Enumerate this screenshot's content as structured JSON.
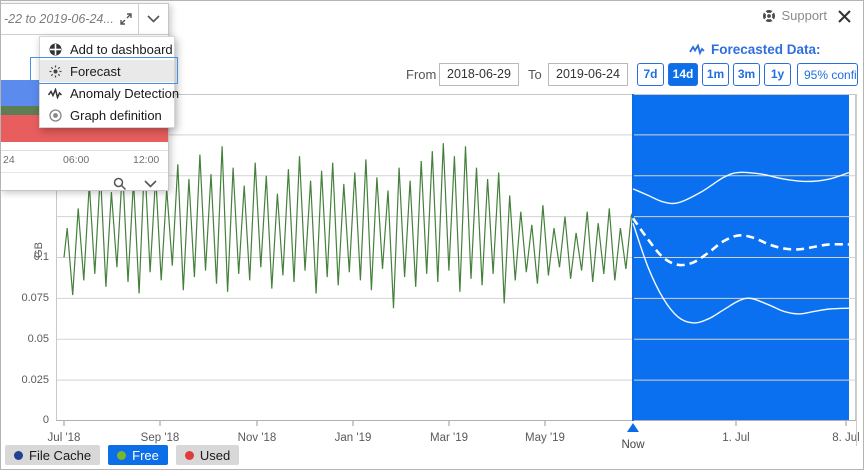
{
  "topbar": {
    "support_label": "Support"
  },
  "header": {
    "forecasted_data_label": "Forecasted Data:"
  },
  "controls": {
    "from_label": "From",
    "from_value": "2018-06-29",
    "to_label": "To",
    "to_value": "2019-06-24",
    "range_buttons": [
      {
        "label": "7d",
        "active": false
      },
      {
        "label": "14d",
        "active": true
      },
      {
        "label": "1m",
        "active": false
      },
      {
        "label": "3m",
        "active": false
      },
      {
        "label": "1y",
        "active": false
      }
    ],
    "confidence_value": "95% confi"
  },
  "tile": {
    "title": "-22 to 2019-06-24...",
    "x_labels": [
      "24",
      "06:00",
      "12:00"
    ],
    "bands": [
      {
        "name": "free",
        "color": "#5b8bed"
      },
      {
        "name": "file-cache",
        "color": "#5f7d52"
      },
      {
        "name": "used",
        "color": "#e85e5e"
      }
    ]
  },
  "menu": {
    "items": [
      {
        "label": "Add to dashboard",
        "selected": false
      },
      {
        "label": "Forecast",
        "selected": true
      },
      {
        "label": "Anomaly Detection",
        "selected": false
      },
      {
        "label": "Graph definition",
        "selected": false
      }
    ]
  },
  "legend": {
    "items": [
      {
        "label": "File Cache",
        "dot_color": "#24418f",
        "active": false
      },
      {
        "label": "Free",
        "dot_color": "#79b62e",
        "active": true
      },
      {
        "label": "Used",
        "dot_color": "#e03c3c",
        "active": false
      }
    ]
  },
  "colors": {
    "accent_blue": "#1f6fe0",
    "forecast_region": "#0b70ef",
    "history_line": "#45803c",
    "gridline": "#d2d2d2",
    "now_line": "#0b6ce8"
  },
  "chart_data": {
    "type": "line",
    "title": "Forecasted Data",
    "ylabel": "GB",
    "ylim": [
      0,
      0.2
    ],
    "grid": true,
    "y_ticks": [
      "0.1",
      "0.075",
      "0.05",
      "0.025",
      "0"
    ],
    "x_ticks_history": [
      "Jul '18",
      "Sep '18",
      "Nov '18",
      "Jan '19",
      "Mar '19",
      "May '19"
    ],
    "x_ticks_forecast": [
      "1. Jul",
      "8. Jul"
    ],
    "now_label": "Now",
    "history": {
      "name": "Free",
      "unit": "GB",
      "x_unit": "days since 2018-06-29",
      "points": [
        [
          0,
          0.1
        ],
        [
          2,
          0.118
        ],
        [
          5.5,
          0.077
        ],
        [
          9,
          0.13
        ],
        [
          12.5,
          0.086
        ],
        [
          16,
          0.145
        ],
        [
          19.5,
          0.09
        ],
        [
          23,
          0.152
        ],
        [
          26.5,
          0.082
        ],
        [
          30,
          0.14
        ],
        [
          33.5,
          0.094
        ],
        [
          37,
          0.155
        ],
        [
          40.5,
          0.085
        ],
        [
          44,
          0.147
        ],
        [
          47.5,
          0.078
        ],
        [
          51,
          0.16
        ],
        [
          54.5,
          0.091
        ],
        [
          58,
          0.15
        ],
        [
          61.5,
          0.086
        ],
        [
          65,
          0.142
        ],
        [
          68.5,
          0.095
        ],
        [
          72,
          0.157
        ],
        [
          75.5,
          0.08
        ],
        [
          79,
          0.148
        ],
        [
          82.5,
          0.088
        ],
        [
          86,
          0.163
        ],
        [
          89.5,
          0.092
        ],
        [
          93,
          0.151
        ],
        [
          96.5,
          0.084
        ],
        [
          100,
          0.168
        ],
        [
          103.5,
          0.079
        ],
        [
          107,
          0.155
        ],
        [
          110.5,
          0.09
        ],
        [
          114,
          0.144
        ],
        [
          117.5,
          0.086
        ],
        [
          121,
          0.158
        ],
        [
          124.5,
          0.094
        ],
        [
          128,
          0.15
        ],
        [
          131.5,
          0.081
        ],
        [
          135,
          0.139
        ],
        [
          138.5,
          0.089
        ],
        [
          142,
          0.154
        ],
        [
          145.5,
          0.085
        ],
        [
          149,
          0.162
        ],
        [
          152.5,
          0.092
        ],
        [
          156,
          0.147
        ],
        [
          159.5,
          0.078
        ],
        [
          163,
          0.153
        ],
        [
          166.5,
          0.088
        ],
        [
          170,
          0.158
        ],
        [
          173.5,
          0.083
        ],
        [
          177,
          0.145
        ],
        [
          180.5,
          0.091
        ],
        [
          184,
          0.152
        ],
        [
          187.5,
          0.086
        ],
        [
          191,
          0.16
        ],
        [
          194.5,
          0.08
        ],
        [
          198,
          0.149
        ],
        [
          201.5,
          0.093
        ],
        [
          205,
          0.141
        ],
        [
          208.5,
          0.069
        ],
        [
          212,
          0.155
        ],
        [
          215.5,
          0.088
        ],
        [
          219,
          0.147
        ],
        [
          222.5,
          0.082
        ],
        [
          226,
          0.159
        ],
        [
          229.5,
          0.09
        ],
        [
          233,
          0.165
        ],
        [
          236.5,
          0.085
        ],
        [
          240,
          0.17
        ],
        [
          243.5,
          0.092
        ],
        [
          247,
          0.162
        ],
        [
          250.5,
          0.079
        ],
        [
          254,
          0.168
        ],
        [
          257.5,
          0.087
        ],
        [
          261,
          0.155
        ],
        [
          264.5,
          0.083
        ],
        [
          268,
          0.148
        ],
        [
          271.5,
          0.09
        ],
        [
          275,
          0.152
        ],
        [
          278.5,
          0.072
        ],
        [
          282,
          0.138
        ],
        [
          285.5,
          0.086
        ],
        [
          289,
          0.128
        ],
        [
          292.5,
          0.091
        ],
        [
          296,
          0.12
        ],
        [
          299.5,
          0.084
        ],
        [
          303,
          0.132
        ],
        [
          306.5,
          0.089
        ],
        [
          310,
          0.118
        ],
        [
          313.5,
          0.094
        ],
        [
          317,
          0.125
        ],
        [
          320.5,
          0.087
        ],
        [
          324,
          0.115
        ],
        [
          327.5,
          0.092
        ],
        [
          331,
          0.128
        ],
        [
          334.5,
          0.085
        ],
        [
          338,
          0.121
        ],
        [
          341.5,
          0.09
        ],
        [
          345,
          0.13
        ],
        [
          348.5,
          0.086
        ],
        [
          352,
          0.118
        ],
        [
          355.5,
          0.093
        ],
        [
          359,
          0.126
        ],
        [
          360,
          0.124
        ]
      ]
    },
    "forecast": {
      "confidence": "95%",
      "span_days": 14.3,
      "upper": [
        [
          0,
          0.142
        ],
        [
          1,
          0.138
        ],
        [
          2,
          0.134
        ],
        [
          3,
          0.1335
        ],
        [
          4.5,
          0.14
        ],
        [
          6,
          0.149
        ],
        [
          7,
          0.152
        ],
        [
          8.5,
          0.151
        ],
        [
          10,
          0.148
        ],
        [
          11.5,
          0.1465
        ],
        [
          13,
          0.148
        ],
        [
          14.3,
          0.152
        ]
      ],
      "median": [
        [
          0,
          0.124
        ],
        [
          1,
          0.111
        ],
        [
          2,
          0.1
        ],
        [
          3,
          0.0955
        ],
        [
          4,
          0.097
        ],
        [
          5,
          0.103
        ],
        [
          6,
          0.11
        ],
        [
          7,
          0.1135
        ],
        [
          8,
          0.112
        ],
        [
          9,
          0.108
        ],
        [
          10,
          0.1055
        ],
        [
          11,
          0.105
        ],
        [
          12,
          0.1065
        ],
        [
          13,
          0.108
        ],
        [
          14.3,
          0.108
        ]
      ],
      "lower": [
        [
          0,
          0.121
        ],
        [
          1,
          0.094
        ],
        [
          2,
          0.075
        ],
        [
          3,
          0.0635
        ],
        [
          4,
          0.06
        ],
        [
          5,
          0.0625
        ],
        [
          6,
          0.068
        ],
        [
          7,
          0.0735
        ],
        [
          7.8,
          0.075
        ],
        [
          9,
          0.071
        ],
        [
          10,
          0.067
        ],
        [
          11,
          0.0655
        ],
        [
          12,
          0.067
        ],
        [
          13,
          0.0685
        ],
        [
          14.3,
          0.069
        ]
      ]
    }
  }
}
